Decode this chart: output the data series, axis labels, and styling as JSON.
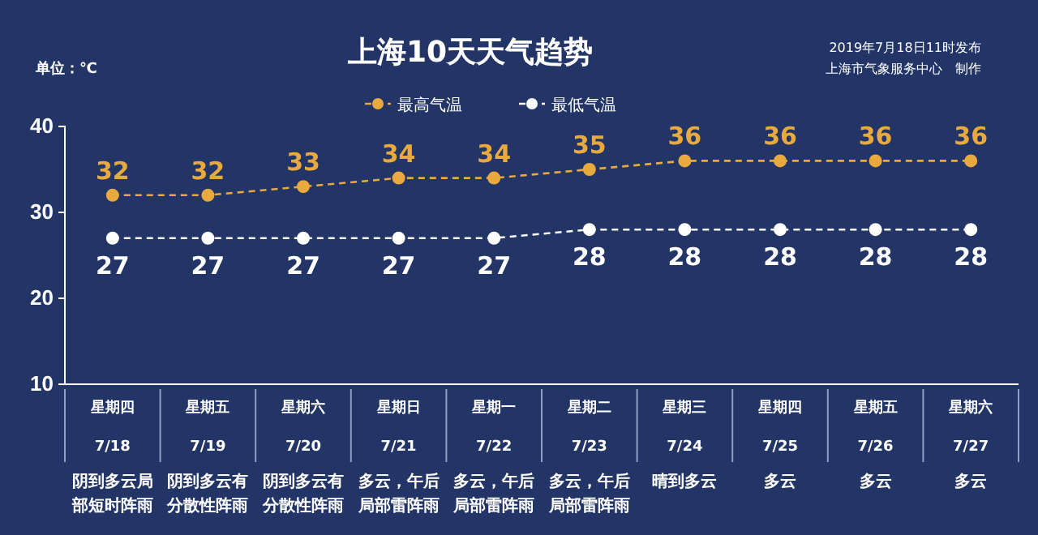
{
  "chart_data": {
    "type": "line",
    "title": "上海10天天气趋势",
    "ylabel": "单位：℃",
    "annotations": [
      "2019年7月18日11时发布",
      "上海市气象服务中心　制作",
      "阴到多云局部短时阵雨",
      "阴到多云有分散性阵雨",
      "阴到多云有分散性阵雨",
      "多云，午后局部雷阵雨",
      "多云，午后局部雷阵雨",
      "多云，午后局部雷阵雨",
      "晴到多云",
      "多云",
      "多云",
      "多云"
    ],
    "categories": [
      "星期四\n7/18",
      "星期五\n7/19",
      "星期六\n7/20",
      "星期日\n7/21",
      "星期一\n7/22",
      "星期二\n7/23",
      "星期三\n7/24",
      "星期四\n7/25",
      "星期五\n7/26",
      "星期六\n7/27"
    ],
    "series": [
      {
        "name": "最高气温",
        "color": "#e8a93e",
        "values": [
          32,
          32,
          33,
          34,
          34,
          35,
          36,
          36,
          36,
          36
        ]
      },
      {
        "name": "最低气温",
        "color": "#ffffff",
        "values": [
          27,
          27,
          27,
          27,
          27,
          28,
          28,
          28,
          28,
          28
        ]
      }
    ],
    "ylim": [
      10,
      40
    ],
    "yticks": [
      10,
      20,
      30,
      40
    ],
    "data_labels": true,
    "legend": "top",
    "marker": "circle",
    "line_style": "dashed",
    "grid": false
  }
}
